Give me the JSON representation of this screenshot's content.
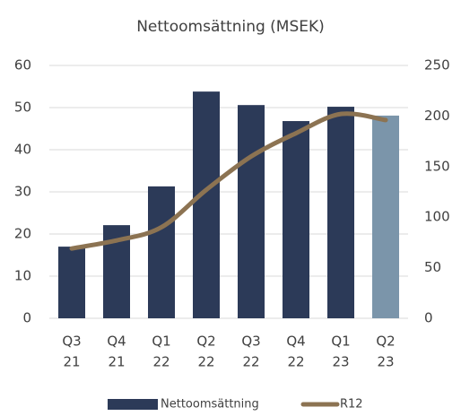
{
  "chart_data": {
    "type": "bar",
    "title": "Nettoomsättning (MSEK)",
    "categories": [
      [
        "Q3",
        "21"
      ],
      [
        "Q4",
        "21"
      ],
      [
        "Q1",
        "22"
      ],
      [
        "Q2",
        "22"
      ],
      [
        "Q3",
        "22"
      ],
      [
        "Q4",
        "22"
      ],
      [
        "Q1",
        "23"
      ],
      [
        "Q2",
        "23"
      ]
    ],
    "series": [
      {
        "name": "Nettoomsättning",
        "type": "bar",
        "color": "#2c3a58",
        "colors": [
          "#2c3a58",
          "#2c3a58",
          "#2c3a58",
          "#2c3a58",
          "#2c3a58",
          "#2c3a58",
          "#2c3a58",
          "#7b95aa"
        ],
        "values": [
          17.0,
          22.1,
          31.3,
          53.8,
          50.6,
          46.8,
          50.2,
          48.1
        ]
      },
      {
        "name": "R12",
        "type": "line",
        "axis": "y2",
        "color": "#8c7352",
        "values": [
          69,
          77,
          90,
          127,
          160,
          183,
          202,
          196
        ]
      }
    ],
    "ylim": [
      0,
      60
    ],
    "yticks": [
      0,
      10,
      20,
      30,
      40,
      50,
      60
    ],
    "y2lim": [
      0,
      250
    ],
    "y2ticks": [
      0,
      50,
      100,
      150,
      200,
      250
    ],
    "grid": true,
    "legend": "bottom"
  }
}
